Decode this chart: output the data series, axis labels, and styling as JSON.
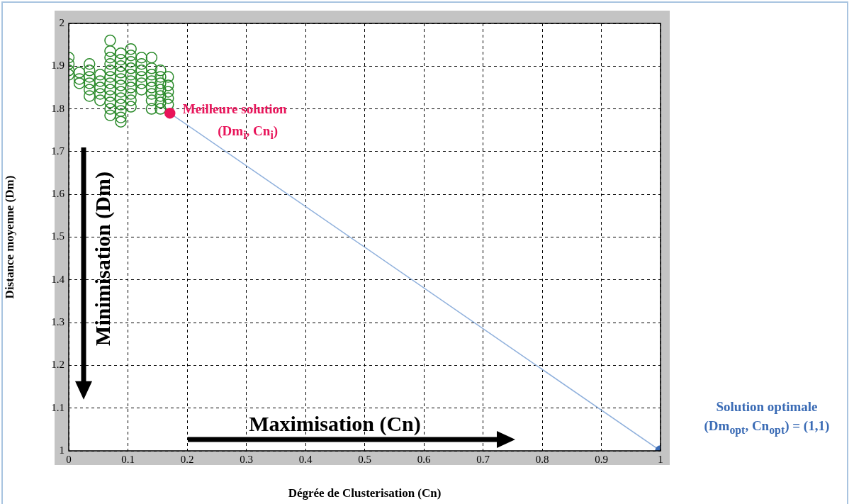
{
  "chart_data": {
    "type": "scatter",
    "xlabel": "Dégrée de Clusterisation (Cn)",
    "ylabel": "Distance moyenne (Dm)",
    "xlim": [
      0,
      1
    ],
    "xticks": [
      0,
      0.1,
      0.2,
      0.3,
      0.4,
      0.5,
      0.6,
      0.7,
      0.8,
      0.9,
      1
    ],
    "ylim": [
      1,
      2
    ],
    "yticks": [
      1,
      1.1,
      1.2,
      1.3,
      1.4,
      1.5,
      1.6,
      1.7,
      1.8,
      1.9,
      2
    ],
    "grid": true,
    "legend": false,
    "marker": "circle",
    "series": [
      {
        "color": "#2a8a2a",
        "x": [
          0,
          0,
          0,
          0,
          0.018,
          0.018,
          0.018,
          0.035,
          0.035,
          0.035,
          0.035,
          0.035,
          0.035,
          0.053,
          0.053,
          0.053,
          0.053,
          0.053,
          0.07,
          0.07,
          0.07,
          0.07,
          0.07,
          0.07,
          0.07,
          0.07,
          0.07,
          0.07,
          0.07,
          0.07,
          0.088,
          0.088,
          0.088,
          0.088,
          0.088,
          0.088,
          0.088,
          0.088,
          0.088,
          0.088,
          0.088,
          0.088,
          0.105,
          0.105,
          0.105,
          0.105,
          0.105,
          0.105,
          0.105,
          0.105,
          0.105,
          0.105,
          0.123,
          0.123,
          0.123,
          0.123,
          0.123,
          0.123,
          0.14,
          0.14,
          0.14,
          0.14,
          0.14,
          0.14,
          0.14,
          0.14,
          0.155,
          0.155,
          0.155,
          0.155,
          0.155,
          0.155,
          0.155,
          0.168,
          0.168,
          0.168,
          0.168,
          0.168
        ],
        "values": [
          1.92,
          1.905,
          1.89,
          1.88,
          1.885,
          1.87,
          1.86,
          1.905,
          1.89,
          1.875,
          1.86,
          1.845,
          1.83,
          1.88,
          1.865,
          1.85,
          1.835,
          1.82,
          1.96,
          1.935,
          1.92,
          1.905,
          1.89,
          1.875,
          1.86,
          1.845,
          1.83,
          1.815,
          1.8,
          1.785,
          1.93,
          1.915,
          1.9,
          1.885,
          1.87,
          1.855,
          1.84,
          1.825,
          1.81,
          1.795,
          1.78,
          1.77,
          1.94,
          1.925,
          1.91,
          1.895,
          1.88,
          1.865,
          1.85,
          1.835,
          1.82,
          1.805,
          1.92,
          1.905,
          1.89,
          1.875,
          1.86,
          1.845,
          1.92,
          1.895,
          1.88,
          1.865,
          1.85,
          1.835,
          1.82,
          1.8,
          1.89,
          1.875,
          1.86,
          1.845,
          1.83,
          1.815,
          1.8,
          1.875,
          1.855,
          1.84,
          1.825,
          1.81
        ]
      },
      {
        "type": "line",
        "color": "#8fb0dc",
        "colors": [
          "#e8145a",
          "#3a6bb5"
        ],
        "x": [
          0.171,
          1
        ],
        "values": [
          1.79,
          1
        ]
      }
    ],
    "annotations": [
      "Meilleure solution",
      "(Dm$_{i}$, Cn$_{i}$)",
      "Solution optimale",
      "(Dm$_{opt}$, Cn$_{opt}$) = (1,1)",
      "Minimisation (Dm)",
      "Maximisation (Cn)"
    ]
  }
}
